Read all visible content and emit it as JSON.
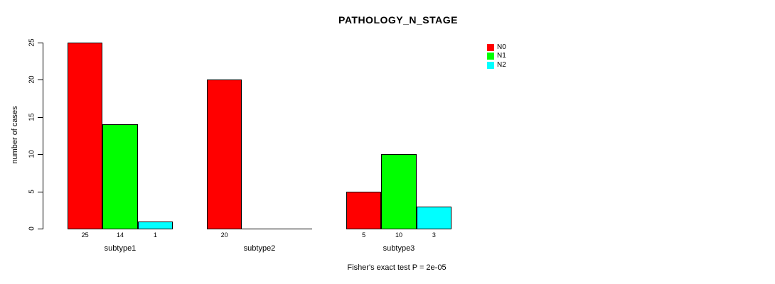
{
  "chart_data": {
    "type": "bar",
    "title": "PATHOLOGY_N_STAGE",
    "xlabel": "",
    "ylabel": "number of cases",
    "annotation": "Fisher's exact test P = 2e-05",
    "categories": [
      "subtype1",
      "subtype2",
      "subtype3"
    ],
    "series": [
      {
        "name": "N0",
        "color": "#ff0000",
        "values": [
          25,
          20,
          5
        ]
      },
      {
        "name": "N1",
        "color": "#00ff00",
        "values": [
          14,
          0,
          10
        ]
      },
      {
        "name": "N2",
        "color": "#00ffff",
        "values": [
          1,
          0,
          3
        ]
      }
    ],
    "value_labels": [
      [
        "25",
        "14",
        "1"
      ],
      [
        "20",
        "",
        ""
      ],
      [
        "5",
        "10",
        "3"
      ]
    ],
    "yticks": [
      0,
      5,
      10,
      15,
      20,
      25
    ],
    "ylim": [
      0,
      25
    ],
    "grid": false,
    "legend_position": "top-right",
    "bar_border_color": "#000000",
    "axis_color": "#000000",
    "background_color": "#ffffff"
  }
}
